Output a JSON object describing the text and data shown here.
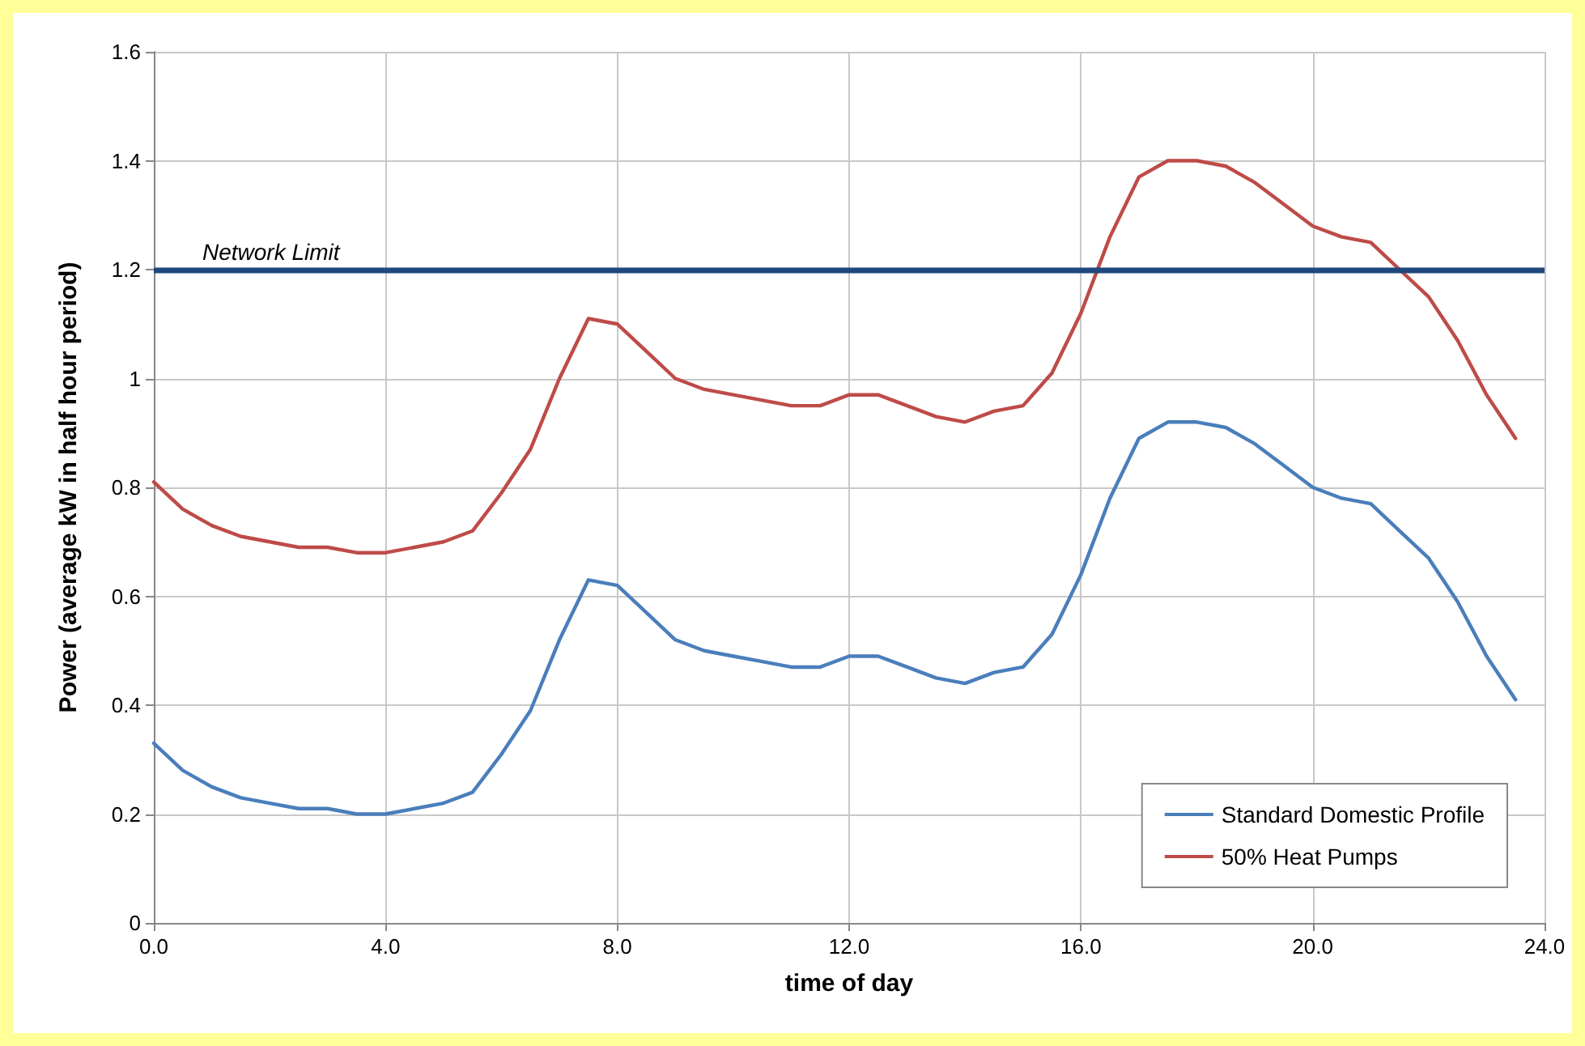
{
  "chart_data": {
    "type": "line",
    "xlabel": "time of day",
    "ylabel": "Power (average kW in half hour period)",
    "x": [
      0,
      0.5,
      1,
      1.5,
      2,
      2.5,
      3,
      3.5,
      4,
      4.5,
      5,
      5.5,
      6,
      6.5,
      7,
      7.5,
      8,
      8.5,
      9,
      9.5,
      10,
      10.5,
      11,
      11.5,
      12,
      12.5,
      13,
      13.5,
      14,
      14.5,
      15,
      15.5,
      16,
      16.5,
      17,
      17.5,
      18,
      18.5,
      19,
      19.5,
      20,
      20.5,
      21,
      21.5,
      22,
      22.5,
      23,
      23.5
    ],
    "series": [
      {
        "name": "Standard Domestic Profile",
        "color": "#4a7ebb",
        "values": [
          0.33,
          0.28,
          0.25,
          0.23,
          0.22,
          0.21,
          0.21,
          0.2,
          0.2,
          0.21,
          0.22,
          0.24,
          0.31,
          0.39,
          0.52,
          0.63,
          0.62,
          0.57,
          0.52,
          0.5,
          0.49,
          0.48,
          0.47,
          0.47,
          0.49,
          0.49,
          0.47,
          0.45,
          0.44,
          0.46,
          0.47,
          0.53,
          0.64,
          0.78,
          0.89,
          0.92,
          0.92,
          0.91,
          0.88,
          0.84,
          0.8,
          0.78,
          0.77,
          0.72,
          0.67,
          0.59,
          0.49,
          0.41
        ]
      },
      {
        "name": "50% Heat Pumps",
        "color": "#be4b48",
        "values": [
          0.81,
          0.76,
          0.73,
          0.71,
          0.7,
          0.69,
          0.69,
          0.68,
          0.68,
          0.69,
          0.7,
          0.72,
          0.79,
          0.87,
          1.0,
          1.11,
          1.1,
          1.05,
          1.0,
          0.98,
          0.97,
          0.96,
          0.95,
          0.95,
          0.97,
          0.97,
          0.95,
          0.93,
          0.92,
          0.94,
          0.95,
          1.01,
          1.12,
          1.26,
          1.37,
          1.4,
          1.4,
          1.39,
          1.36,
          1.32,
          1.28,
          1.26,
          1.25,
          1.2,
          1.15,
          1.07,
          0.97,
          0.89
        ]
      }
    ],
    "xlim": [
      0,
      24
    ],
    "xticks": [
      {
        "value": 0,
        "label": "0.0"
      },
      {
        "value": 4,
        "label": "4.0"
      },
      {
        "value": 8,
        "label": "8.0"
      },
      {
        "value": 12,
        "label": "12.0"
      },
      {
        "value": 16,
        "label": "16.0"
      },
      {
        "value": 20,
        "label": "20.0"
      },
      {
        "value": 24,
        "label": "24.0"
      }
    ],
    "ylim": [
      0,
      1.6
    ],
    "yticks": [
      0,
      0.2,
      0.4,
      0.6,
      0.8,
      1,
      1.2,
      1.4,
      1.6
    ],
    "ref_lines": [
      {
        "axis": "y",
        "value": 1.2,
        "label": "Network Limit",
        "color": "#1f497d"
      }
    ],
    "grid": true,
    "legend": "bottom right",
    "marker": "none",
    "line_style": "solid"
  }
}
